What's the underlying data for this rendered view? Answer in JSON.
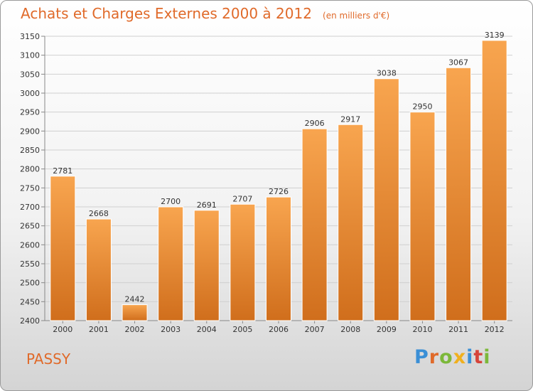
{
  "header": {
    "title": "Achats et Charges Externes 2000 à 2012",
    "unit": "(en milliers d'€)"
  },
  "footer": {
    "commune": "PASSY",
    "logo_text": "Proxiti"
  },
  "colors": {
    "bar_top": "#f8a54f",
    "bar_bottom": "#d06e1c",
    "title": "#e06a2a"
  },
  "chart_data": {
    "type": "bar",
    "title": "Achats et Charges Externes 2000 à 2012",
    "xlabel": "",
    "ylabel": "",
    "categories": [
      "2000",
      "2001",
      "2002",
      "2003",
      "2004",
      "2005",
      "2006",
      "2007",
      "2008",
      "2009",
      "2010",
      "2011",
      "2012"
    ],
    "values": [
      2781,
      2668,
      2442,
      2700,
      2691,
      2707,
      2726,
      2906,
      2917,
      3038,
      2950,
      3067,
      3139
    ],
    "ylim": [
      2400,
      3150
    ],
    "yticks": [
      2400,
      2450,
      2500,
      2550,
      2600,
      2650,
      2700,
      2750,
      2800,
      2850,
      2900,
      2950,
      3000,
      3050,
      3100,
      3150
    ],
    "grid": true,
    "legend": "none"
  }
}
